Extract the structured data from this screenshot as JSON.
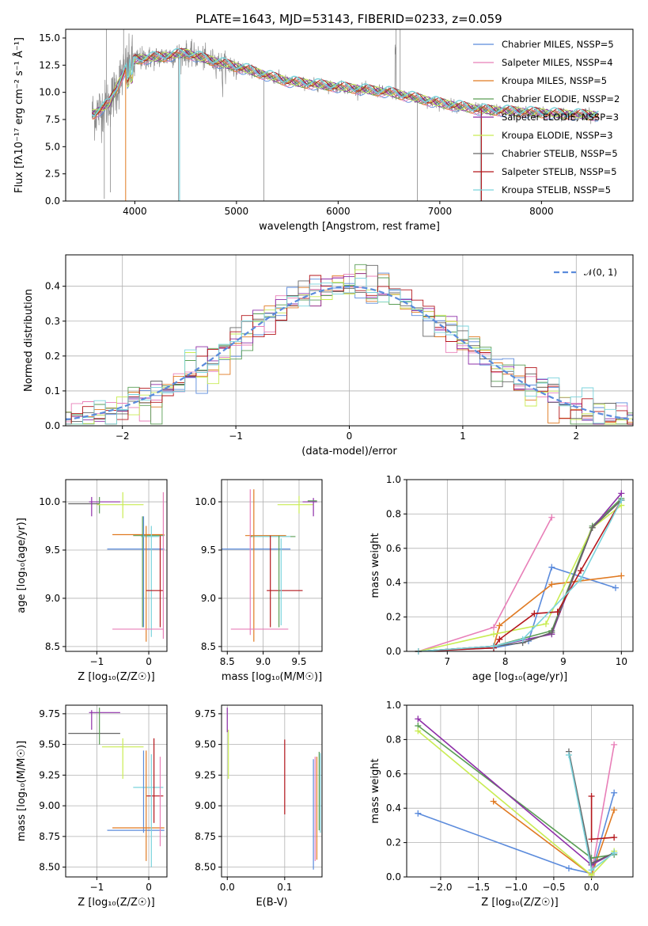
{
  "figure": {
    "title": "PLATE=1643, MJD=53143, FIBERID=0233, z=0.059"
  },
  "colors": {
    "series": [
      "#5b8bdc",
      "#e87fb8",
      "#e07a22",
      "#5a9e55",
      "#8e2fa8",
      "#c9ec53",
      "#666666",
      "#b4161b",
      "#7ad3dc"
    ],
    "data": "#8a8a8a",
    "normal": "#5b8bdc"
  },
  "chart_data": [
    {
      "id": "spectrum",
      "type": "line",
      "title": "PLATE=1643, MJD=53143, FIBERID=0233, z=0.059",
      "xlabel": "wavelength [Angstrom, rest frame]",
      "ylabel": "Flux [fλ10⁻¹⁷ erg cm⁻² s⁻¹ Å⁻¹]",
      "xlim": [
        3320,
        8900
      ],
      "ylim": [
        0,
        15.8
      ],
      "xticks": [
        "4000",
        "5000",
        "6000",
        "7000",
        "8000"
      ],
      "yticks": [
        "0.0",
        "2.5",
        "5.0",
        "7.5",
        "10.0",
        "12.5",
        "15.0"
      ],
      "legend_position": "upper right",
      "legend": [
        "Chabrier MILES, NSSP=5",
        "Salpeter MILES, NSSP=4",
        "Kroupa MILES, NSSP=5",
        "Chabrier ELODIE, NSSP=2",
        "Salpeter ELODIE, NSSP=3",
        "Kroupa ELODIE, NSSP=3",
        "Chabrier STELIB, NSSP=5",
        "Salpeter STELIB, NSSP=5",
        "Kroupa STELIB, NSSP=5"
      ],
      "continuum_points": [
        [
          3600,
          8.0
        ],
        [
          3750,
          9.0
        ],
        [
          3900,
          12.0
        ],
        [
          4000,
          13.0
        ],
        [
          4300,
          13.3
        ],
        [
          4500,
          13.6
        ],
        [
          4800,
          12.8
        ],
        [
          5100,
          12.1
        ],
        [
          5500,
          11.0
        ],
        [
          6000,
          10.5
        ],
        [
          6500,
          10.0
        ],
        [
          7000,
          9.0
        ],
        [
          7400,
          8.4
        ],
        [
          7800,
          8.2
        ],
        [
          8200,
          8.0
        ],
        [
          8500,
          7.9
        ]
      ]
    },
    {
      "id": "residuals",
      "type": "area",
      "xlabel": "(data-model)/error",
      "ylabel": "Normed distribution",
      "xlim": [
        -2.5,
        2.5
      ],
      "ylim": [
        0,
        0.49
      ],
      "xticks": [
        "−2",
        "−1",
        "0",
        "1",
        "2"
      ],
      "yticks": [
        "0.0",
        "0.1",
        "0.2",
        "0.3",
        "0.4"
      ],
      "grid": true,
      "legend_position": "upper right",
      "legend": [
        "𝒩(0, 1)"
      ],
      "bin_width": 0.1,
      "note_values": "histograms follow the standard normal density with scatter of about ±0.04"
    },
    {
      "id": "age-vs-Z",
      "type": "scatter",
      "xlabel": "Z [log₁₀(Z/Z☉)]",
      "ylabel": "age  [log₁₀(age/yr)]",
      "xlim": [
        -1.6,
        0.35
      ],
      "ylim": [
        8.45,
        10.23
      ],
      "xticks": [
        "−1",
        "0"
      ],
      "yticks": [
        "8.5",
        "9.0",
        "9.5",
        "10.0"
      ],
      "grid": true,
      "errorbars": [
        {
          "series": 6,
          "x": [
            -1.55,
            -0.95
          ],
          "y": [
            9.98,
            9.98
          ]
        },
        {
          "series": 4,
          "x": [
            -1.15,
            -0.55
          ],
          "y": [
            10.0,
            10.0
          ]
        },
        {
          "series": 4,
          "x": [
            -1.1,
            -1.1
          ],
          "y": [
            9.85,
            10.05
          ]
        },
        {
          "series": 3,
          "x": [
            -0.95,
            -0.95
          ],
          "y": [
            9.88,
            10.05
          ]
        },
        {
          "series": 5,
          "x": [
            -1.0,
            -0.1
          ],
          "y": [
            9.97,
            9.97
          ]
        },
        {
          "series": 5,
          "x": [
            -0.5,
            -0.5
          ],
          "y": [
            9.83,
            10.1
          ]
        },
        {
          "series": 2,
          "x": [
            -0.7,
            0.3
          ],
          "y": [
            9.66,
            9.66
          ]
        },
        {
          "series": 3,
          "x": [
            -0.3,
            0.3
          ],
          "y": [
            9.65,
            9.65
          ]
        },
        {
          "series": 0,
          "x": [
            -0.8,
            0.3
          ],
          "y": [
            9.51,
            9.51
          ]
        },
        {
          "series": 0,
          "x": [
            -0.1,
            -0.1
          ],
          "y": [
            8.7,
            9.85
          ]
        },
        {
          "series": 8,
          "x": [
            -0.15,
            0.2
          ],
          "y": [
            9.64,
            9.64
          ]
        },
        {
          "series": 3,
          "x": [
            -0.12,
            -0.12
          ],
          "y": [
            8.7,
            9.85
          ]
        },
        {
          "series": 2,
          "x": [
            -0.05,
            -0.05
          ],
          "y": [
            8.55,
            9.75
          ]
        },
        {
          "series": 8,
          "x": [
            0.05,
            0.05
          ],
          "y": [
            8.6,
            9.75
          ]
        },
        {
          "series": 7,
          "x": [
            -0.05,
            0.28
          ],
          "y": [
            9.08,
            9.08
          ]
        },
        {
          "series": 7,
          "x": [
            0.22,
            0.22
          ],
          "y": [
            8.7,
            9.65
          ]
        },
        {
          "series": 1,
          "x": [
            -0.7,
            0.28
          ],
          "y": [
            8.68,
            8.68
          ]
        },
        {
          "series": 1,
          "x": [
            0.28,
            0.28
          ],
          "y": [
            8.58,
            10.1
          ]
        }
      ]
    },
    {
      "id": "age-vs-mass",
      "type": "scatter",
      "xlabel": "mass [log₁₀(M/M☉)]",
      "ylabel": "",
      "xlim": [
        8.42,
        9.82
      ],
      "ylim": [
        8.45,
        10.23
      ],
      "xticks": [
        "8.5",
        "9.0",
        "9.5"
      ],
      "yticks": [
        "8.5",
        "9.0",
        "9.5",
        "10.0"
      ],
      "grid": true,
      "errorbars": [
        {
          "series": 5,
          "x": [
            9.2,
            9.7
          ],
          "y": [
            9.97,
            9.97
          ]
        },
        {
          "series": 5,
          "x": [
            9.5,
            9.5
          ],
          "y": [
            9.88,
            10.06
          ]
        },
        {
          "series": 4,
          "x": [
            9.55,
            9.75
          ],
          "y": [
            10.0,
            10.0
          ]
        },
        {
          "series": 4,
          "x": [
            9.7,
            9.7
          ],
          "y": [
            9.85,
            10.04
          ]
        },
        {
          "series": 3,
          "x": [
            9.62,
            9.75
          ],
          "y": [
            10.01,
            10.01
          ]
        },
        {
          "series": 2,
          "x": [
            8.75,
            9.32
          ],
          "y": [
            9.65,
            9.65
          ]
        },
        {
          "series": 3,
          "x": [
            8.82,
            9.45
          ],
          "y": [
            9.64,
            9.64
          ]
        },
        {
          "series": 8,
          "x": [
            8.85,
            9.38
          ],
          "y": [
            9.64,
            9.64
          ]
        },
        {
          "series": 0,
          "x": [
            8.42,
            9.38
          ],
          "y": [
            9.51,
            9.51
          ]
        },
        {
          "series": 2,
          "x": [
            8.87,
            8.87
          ],
          "y": [
            8.55,
            10.13
          ]
        },
        {
          "series": 1,
          "x": [
            8.82,
            8.82
          ],
          "y": [
            8.62,
            10.13
          ]
        },
        {
          "series": 7,
          "x": [
            9.05,
            9.55
          ],
          "y": [
            9.08,
            9.08
          ]
        },
        {
          "series": 7,
          "x": [
            9.1,
            9.1
          ],
          "y": [
            8.7,
            9.65
          ]
        },
        {
          "series": 3,
          "x": [
            9.22,
            9.22
          ],
          "y": [
            8.7,
            9.65
          ]
        },
        {
          "series": 8,
          "x": [
            9.25,
            9.25
          ],
          "y": [
            8.72,
            9.62
          ]
        },
        {
          "series": 1,
          "x": [
            8.55,
            9.35
          ],
          "y": [
            8.68,
            8.68
          ]
        }
      ]
    },
    {
      "id": "massweight-vs-age",
      "type": "line",
      "xlabel": "age  [log₁₀(age/yr)]",
      "ylabel": "mass weight",
      "xlim": [
        6.3,
        10.2
      ],
      "ylim": [
        0,
        1.0
      ],
      "xticks": [
        "7",
        "8",
        "9",
        "10"
      ],
      "yticks": [
        "0.0",
        "0.2",
        "0.4",
        "0.6",
        "0.8",
        "1.0"
      ],
      "grid": true,
      "series": [
        {
          "color": 0,
          "x": [
            6.5,
            7.8,
            8.4,
            8.8,
            9.9
          ],
          "y": [
            0.0,
            0.02,
            0.06,
            0.49,
            0.37
          ]
        },
        {
          "color": 1,
          "x": [
            6.5,
            7.8,
            8.8
          ],
          "y": [
            0.0,
            0.14,
            0.78
          ]
        },
        {
          "color": 2,
          "x": [
            6.5,
            7.8,
            7.9,
            8.8,
            10.0
          ],
          "y": [
            0.0,
            0.03,
            0.15,
            0.39,
            0.44
          ]
        },
        {
          "color": 3,
          "x": [
            6.5,
            7.8,
            8.8,
            9.5,
            10.0
          ],
          "y": [
            0.0,
            0.03,
            0.12,
            0.73,
            0.89
          ]
        },
        {
          "color": 4,
          "x": [
            6.5,
            7.8,
            8.8,
            9.5,
            10.0
          ],
          "y": [
            0.0,
            0.03,
            0.1,
            0.72,
            0.92
          ]
        },
        {
          "color": 5,
          "x": [
            6.5,
            7.8,
            8.7,
            9.5,
            10.0
          ],
          "y": [
            0.0,
            0.1,
            0.16,
            0.72,
            0.85
          ]
        },
        {
          "color": 6,
          "x": [
            6.5,
            7.8,
            8.3,
            8.8,
            9.5,
            10.0
          ],
          "y": [
            0.0,
            0.03,
            0.05,
            0.11,
            0.72,
            0.88
          ]
        },
        {
          "color": 7,
          "x": [
            6.5,
            7.8,
            7.9,
            8.5,
            8.9,
            9.3,
            10.0
          ],
          "y": [
            0.0,
            0.02,
            0.07,
            0.22,
            0.23,
            0.47,
            0.88
          ]
        },
        {
          "color": 8,
          "x": [
            6.5,
            7.8,
            8.3,
            9.3,
            10.0
          ],
          "y": [
            0.0,
            0.03,
            0.07,
            0.42,
            0.88
          ]
        }
      ]
    },
    {
      "id": "mass-vs-Z",
      "type": "scatter",
      "xlabel": "Z [log₁₀(Z/Z☉)]",
      "ylabel": "mass [log₁₀(M/M☉)]",
      "xlim": [
        -1.6,
        0.35
      ],
      "ylim": [
        8.42,
        9.82
      ],
      "xticks": [
        "−1",
        "0"
      ],
      "yticks": [
        "8.50",
        "8.75",
        "9.00",
        "9.25",
        "9.50",
        "9.75"
      ],
      "grid": true,
      "errorbars": [
        {
          "series": 4,
          "x": [
            -1.15,
            -0.55
          ],
          "y": [
            9.76,
            9.76
          ]
        },
        {
          "series": 4,
          "x": [
            -1.1,
            -1.1
          ],
          "y": [
            9.62,
            9.78
          ]
        },
        {
          "series": 6,
          "x": [
            -1.55,
            -0.55
          ],
          "y": [
            9.59,
            9.59
          ]
        },
        {
          "series": 3,
          "x": [
            -0.95,
            -0.95
          ],
          "y": [
            9.5,
            9.8
          ]
        },
        {
          "series": 5,
          "x": [
            -0.9,
            -0.1
          ],
          "y": [
            9.48,
            9.48
          ]
        },
        {
          "series": 5,
          "x": [
            -0.5,
            -0.5
          ],
          "y": [
            9.22,
            9.55
          ]
        },
        {
          "series": 8,
          "x": [
            -0.3,
            0.28
          ],
          "y": [
            9.15,
            9.15
          ]
        },
        {
          "series": 7,
          "x": [
            -0.05,
            0.28
          ],
          "y": [
            9.08,
            9.08
          ]
        },
        {
          "series": 7,
          "x": [
            0.1,
            0.1
          ],
          "y": [
            8.86,
            9.55
          ]
        },
        {
          "series": 0,
          "x": [
            -0.1,
            -0.1
          ],
          "y": [
            8.78,
            9.45
          ]
        },
        {
          "series": 2,
          "x": [
            -0.7,
            0.3
          ],
          "y": [
            8.82,
            8.82
          ]
        },
        {
          "series": 0,
          "x": [
            -0.8,
            0.3
          ],
          "y": [
            8.8,
            8.8
          ]
        },
        {
          "series": 2,
          "x": [
            -0.05,
            -0.05
          ],
          "y": [
            8.55,
            9.45
          ]
        },
        {
          "series": 8,
          "x": [
            0.05,
            0.05
          ],
          "y": [
            8.5,
            9.42
          ]
        },
        {
          "series": 1,
          "x": [
            0.22,
            0.22
          ],
          "y": [
            8.67,
            9.4
          ]
        }
      ]
    },
    {
      "id": "mass-vs-ebv",
      "type": "scatter",
      "xlabel": "E(B-V)",
      "ylabel": "",
      "xlim": [
        -0.01,
        0.165
      ],
      "ylim": [
        8.42,
        9.82
      ],
      "xticks": [
        "0.0",
        "0.1"
      ],
      "yticks": [
        "8.50",
        "8.75",
        "9.00",
        "9.25",
        "9.50",
        "9.75"
      ],
      "grid": true,
      "errorbars": [
        {
          "series": 4,
          "x": [
            0.0,
            0.0
          ],
          "y": [
            9.6,
            9.8
          ]
        },
        {
          "series": 5,
          "x": [
            0.002,
            0.002
          ],
          "y": [
            9.22,
            9.62
          ]
        },
        {
          "series": 7,
          "x": [
            0.1,
            0.1
          ],
          "y": [
            8.93,
            9.54
          ]
        },
        {
          "series": 0,
          "x": [
            0.15,
            0.15
          ],
          "y": [
            8.48,
            9.38
          ]
        },
        {
          "series": 1,
          "x": [
            0.153,
            0.153
          ],
          "y": [
            8.55,
            9.4
          ]
        },
        {
          "series": 2,
          "x": [
            0.156,
            0.156
          ],
          "y": [
            8.56,
            9.4
          ]
        },
        {
          "series": 3,
          "x": [
            0.16,
            0.16
          ],
          "y": [
            8.8,
            9.44
          ]
        },
        {
          "series": 8,
          "x": [
            0.162,
            0.162
          ],
          "y": [
            8.78,
            9.43
          ]
        }
      ]
    },
    {
      "id": "massweight-vs-Z",
      "type": "line",
      "xlabel": "Z [log₁₀(Z/Z☉)]",
      "ylabel": "mass weight",
      "xlim": [
        -2.45,
        0.55
      ],
      "ylim": [
        0,
        1.0
      ],
      "xticks": [
        "−2.0",
        "−1.5",
        "−1.0",
        "−0.5",
        "0.0"
      ],
      "yticks": [
        "0.0",
        "0.2",
        "0.4",
        "0.6",
        "0.8",
        "1.0"
      ],
      "grid": true,
      "series": [
        {
          "color": 0,
          "x": [
            -2.3,
            -0.3,
            0.0,
            0.3
          ],
          "y": [
            0.37,
            0.05,
            0.02,
            0.49
          ]
        },
        {
          "color": 1,
          "x": [
            0.0,
            0.3
          ],
          "y": [
            0.02,
            0.77
          ]
        },
        {
          "color": 2,
          "x": [
            -1.3,
            0.0,
            0.3
          ],
          "y": [
            0.44,
            0.01,
            0.39
          ]
        },
        {
          "color": 3,
          "x": [
            -2.3,
            0.0,
            0.3
          ],
          "y": [
            0.88,
            0.11,
            0.13
          ]
        },
        {
          "color": 4,
          "x": [
            -2.3,
            0.0,
            0.3
          ],
          "y": [
            0.92,
            0.07,
            0.14
          ]
        },
        {
          "color": 5,
          "x": [
            -2.3,
            0.0,
            0.3
          ],
          "y": [
            0.85,
            0.01,
            0.15
          ]
        },
        {
          "color": 6,
          "x": [
            -0.3,
            0.0,
            0.3
          ],
          "y": [
            0.73,
            0.08,
            0.14
          ]
        },
        {
          "color": 7,
          "x": [
            0.0,
            0.0,
            0.3
          ],
          "y": [
            0.47,
            0.22,
            0.23
          ]
        },
        {
          "color": 8,
          "x": [
            -0.3,
            0.0,
            0.3
          ],
          "y": [
            0.71,
            0.04,
            0.14
          ]
        }
      ]
    }
  ]
}
